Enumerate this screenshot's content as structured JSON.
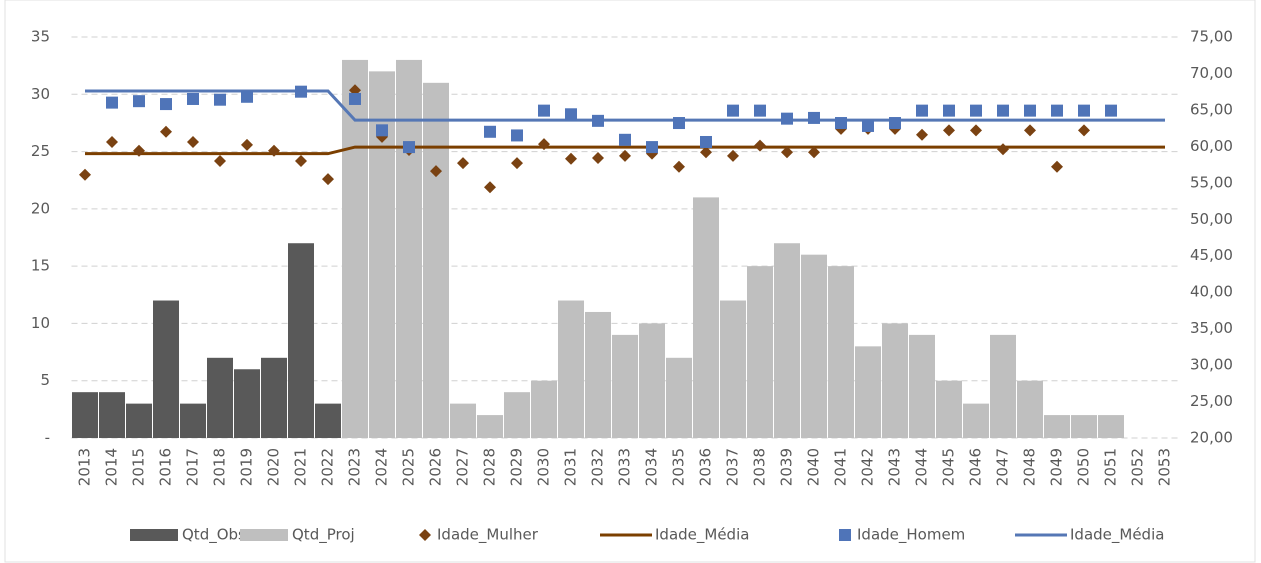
{
  "chart_data": {
    "type": "combo",
    "categories": [
      "2013",
      "2014",
      "2015",
      "2016",
      "2017",
      "2018",
      "2019",
      "2020",
      "2021",
      "2022",
      "2023",
      "2024",
      "2025",
      "2026",
      "2027",
      "2028",
      "2029",
      "2030",
      "2031",
      "2032",
      "2033",
      "2034",
      "2035",
      "2036",
      "2037",
      "2038",
      "2039",
      "2040",
      "2041",
      "2042",
      "2043",
      "2044",
      "2045",
      "2046",
      "2047",
      "2048",
      "2049",
      "2050",
      "2051",
      "2052",
      "2053"
    ],
    "ylim": [
      0,
      35
    ],
    "yticks": [
      {
        "value": 0,
        "label": "-"
      },
      5,
      10,
      15,
      20,
      25,
      30,
      35
    ],
    "y2lim": [
      20,
      75
    ],
    "y2ticks": [
      {
        "value": 20,
        "label": "20,00"
      },
      {
        "value": 25,
        "label": "25,00"
      },
      {
        "value": 30,
        "label": "30,00"
      },
      {
        "value": 35,
        "label": "35,00"
      },
      {
        "value": 40,
        "label": "40,00"
      },
      {
        "value": 45,
        "label": "45,00"
      },
      {
        "value": 50,
        "label": "50,00"
      },
      {
        "value": 55,
        "label": "55,00"
      },
      {
        "value": 60,
        "label": "60,00"
      },
      {
        "value": 65,
        "label": "65,00"
      },
      {
        "value": 70,
        "label": "70,00"
      },
      {
        "value": 75,
        "label": "75,00"
      }
    ],
    "grid": true,
    "legend": "bottom",
    "series": [
      {
        "name": "Qtd_Obs",
        "type": "bar",
        "color": "#595959",
        "values": [
          4,
          4,
          3,
          12,
          3,
          7,
          6,
          7,
          17,
          3,
          null,
          null,
          null,
          null,
          null,
          null,
          null,
          null,
          null,
          null,
          null,
          null,
          null,
          null,
          null,
          null,
          null,
          null,
          null,
          null,
          null,
          null,
          null,
          null,
          null,
          null,
          null,
          null,
          null,
          null,
          null
        ]
      },
      {
        "name": "Qtd_Proj",
        "type": "bar",
        "color": "#bfbfbf",
        "values": [
          null,
          null,
          null,
          null,
          null,
          null,
          null,
          null,
          null,
          null,
          33,
          32,
          33,
          31,
          3,
          2,
          4,
          5,
          12,
          11,
          9,
          10,
          7,
          21,
          12,
          15,
          17,
          16,
          15,
          8,
          10,
          9,
          5,
          3,
          9,
          5,
          2,
          2,
          2,
          null,
          null
        ]
      },
      {
        "name": "Idade_Mulher",
        "type": "scatter",
        "marker": "diamond",
        "axis": "y2",
        "color": "#7a4212",
        "values": [
          56.1,
          60.6,
          59.4,
          62.0,
          60.6,
          58.0,
          60.2,
          59.4,
          58.0,
          55.5,
          67.7,
          61.3,
          59.5,
          56.6,
          57.7,
          54.4,
          57.7,
          60.3,
          58.3,
          58.4,
          58.7,
          59.0,
          57.2,
          59.2,
          58.7,
          60.1,
          59.2,
          59.2,
          62.4,
          62.4,
          62.4,
          61.6,
          62.2,
          62.2,
          59.6,
          62.2,
          57.2,
          62.2,
          null,
          null,
          null
        ]
      },
      {
        "name": "Idade_Média",
        "type": "line",
        "axis": "y2",
        "color": "#7b3f00",
        "values": [
          59.0,
          59.0,
          59.0,
          59.0,
          59.0,
          59.0,
          59.0,
          59.0,
          59.0,
          59.0,
          59.9,
          59.9,
          59.9,
          59.9,
          59.9,
          59.9,
          59.9,
          59.9,
          59.9,
          59.9,
          59.9,
          59.9,
          59.9,
          59.9,
          59.9,
          59.9,
          59.9,
          59.9,
          59.9,
          59.9,
          59.9,
          59.9,
          59.9,
          59.9,
          59.9,
          59.9,
          59.9,
          59.9,
          59.9,
          59.9,
          59.9
        ]
      },
      {
        "name": "Idade_Homem",
        "type": "scatter",
        "marker": "square",
        "axis": "y2",
        "color": "#4f74b8",
        "values": [
          null,
          66.0,
          66.2,
          65.8,
          66.5,
          66.4,
          66.8,
          null,
          67.5,
          null,
          66.5,
          62.2,
          59.9,
          null,
          null,
          62.0,
          61.5,
          64.9,
          64.4,
          63.5,
          60.9,
          59.9,
          63.2,
          60.6,
          64.9,
          64.9,
          63.8,
          63.9,
          63.2,
          62.8,
          63.2,
          64.9,
          64.9,
          64.9,
          64.9,
          64.9,
          64.9,
          64.9,
          64.9,
          null,
          null
        ]
      },
      {
        "name": "Idade_Média",
        "type": "line",
        "axis": "y2",
        "color": "#5577b5",
        "values": [
          67.6,
          67.6,
          67.6,
          67.6,
          67.6,
          67.6,
          67.6,
          67.6,
          67.6,
          67.6,
          63.6,
          63.6,
          63.6,
          63.6,
          63.6,
          63.6,
          63.6,
          63.6,
          63.6,
          63.6,
          63.6,
          63.6,
          63.6,
          63.6,
          63.6,
          63.6,
          63.6,
          63.6,
          63.6,
          63.6,
          63.6,
          63.6,
          63.6,
          63.6,
          63.6,
          63.6,
          63.6,
          63.6,
          63.6,
          63.6,
          63.6
        ]
      }
    ]
  }
}
